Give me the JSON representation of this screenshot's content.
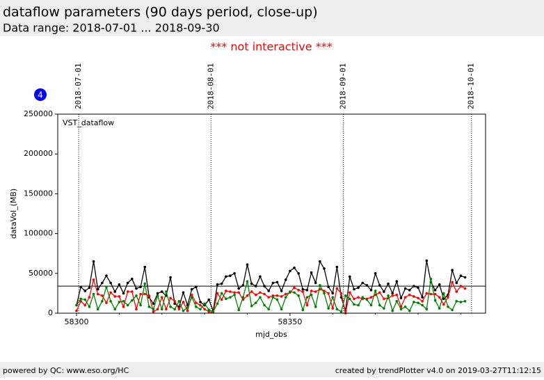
{
  "header": {
    "title": "dataflow parameters (90 days period, close-up)",
    "subtitle": "Data range: 2018-07-01 ... 2018-09-30"
  },
  "notice": "*** not interactive ***",
  "badge": "4",
  "footer": {
    "left": "powered by QC: www.eso.org/HC",
    "right": "created by trendPlotter v4.0 on 2019-03-27T11:12:15"
  },
  "chart_data": {
    "type": "line",
    "annotation": "VST_dataflow",
    "x_label": "mjd_obs",
    "y_label": "dataVol_(MB)",
    "xlim": [
      58295.6,
      58395.8
    ],
    "ylim": [
      0,
      250000
    ],
    "xticks": [
      58300,
      58350
    ],
    "xticks_minor": [
      58310,
      58320,
      58330,
      58340,
      58360,
      58370,
      58380,
      58390
    ],
    "yticks": [
      0,
      50000,
      100000,
      150000,
      200000,
      250000
    ],
    "date_ticks": [
      {
        "value": 58300.5,
        "label": "2018-07-01"
      },
      {
        "value": 58331.5,
        "label": "2018-08-01"
      },
      {
        "value": 58362.5,
        "label": "2018-09-01"
      },
      {
        "value": 58392.5,
        "label": "2018-10-01"
      }
    ],
    "hline": 34000,
    "x": [
      58300,
      58301,
      58302,
      58303,
      58304,
      58305,
      58306,
      58307,
      58308,
      58309,
      58310,
      58311,
      58312,
      58313,
      58314,
      58315,
      58316,
      58317,
      58318,
      58319,
      58320,
      58321,
      58322,
      58323,
      58324,
      58325,
      58326,
      58327,
      58328,
      58329,
      58330,
      58331,
      58332,
      58333,
      58334,
      58335,
      58336,
      58337,
      58338,
      58339,
      58340,
      58341,
      58342,
      58343,
      58344,
      58345,
      58346,
      58347,
      58348,
      58349,
      58350,
      58351,
      58352,
      58353,
      58354,
      58355,
      58356,
      58357,
      58358,
      58359,
      58360,
      58361,
      58362,
      58363,
      58364,
      58365,
      58366,
      58367,
      58368,
      58369,
      58370,
      58371,
      58372,
      58373,
      58374,
      58375,
      58376,
      58377,
      58378,
      58379,
      58380,
      58381,
      58382,
      58383,
      58384,
      58385,
      58386,
      58387,
      58388,
      58389,
      58390,
      58391
    ],
    "series": [
      {
        "color": "#000000",
        "values": [
          10000,
          33000,
          28000,
          32000,
          65000,
          30000,
          38000,
          47000,
          38000,
          27000,
          36000,
          25000,
          38000,
          43000,
          31000,
          33000,
          58000,
          20000,
          12000,
          25000,
          27000,
          22000,
          45000,
          12000,
          8000,
          26000,
          10000,
          30000,
          33000,
          14000,
          10000,
          17000,
          3000,
          36000,
          37000,
          46000,
          47000,
          50000,
          31000,
          35000,
          61000,
          37000,
          34000,
          46000,
          34000,
          28000,
          38000,
          39000,
          28000,
          42000,
          53000,
          57000,
          50000,
          30000,
          29000,
          51000,
          38000,
          65000,
          56000,
          33000,
          25000,
          58000,
          20000,
          3000,
          46000,
          30000,
          32000,
          38000,
          35000,
          29000,
          50000,
          35000,
          27000,
          37000,
          25000,
          40000,
          19000,
          31000,
          29000,
          34000,
          32000,
          20000,
          66000,
          39000,
          29000,
          36000,
          18000,
          23000,
          54000,
          38000,
          47000,
          45000
        ]
      },
      {
        "color": "#ff0000",
        "values": [
          3000,
          15000,
          10000,
          20000,
          42000,
          24000,
          22000,
          13000,
          26000,
          21000,
          21000,
          8000,
          27000,
          27000,
          5000,
          24000,
          24000,
          22000,
          2000,
          5000,
          20000,
          5000,
          19000,
          15000,
          5000,
          14000,
          3000,
          23000,
          13000,
          10000,
          5000,
          2000,
          1000,
          25000,
          17000,
          28000,
          27000,
          26000,
          26000,
          17000,
          22000,
          27000,
          23000,
          26000,
          24000,
          20000,
          22000,
          22000,
          21000,
          24000,
          26000,
          32000,
          29000,
          27000,
          10000,
          28000,
          27000,
          30000,
          28000,
          25000,
          6000,
          31000,
          25000,
          0,
          26000,
          18000,
          20000,
          18000,
          18000,
          20000,
          23000,
          26000,
          18000,
          19000,
          22000,
          23000,
          8000,
          20000,
          23000,
          21000,
          19000,
          15000,
          25000,
          24000,
          24000,
          20000,
          11000,
          20000,
          39000,
          27000,
          34000,
          31000
        ]
      },
      {
        "color": "#008000",
        "values": [
          10000,
          18000,
          17000,
          8000,
          24000,
          5000,
          15000,
          33000,
          15000,
          5000,
          14000,
          15000,
          10000,
          16000,
          22000,
          10000,
          37000,
          8000,
          5000,
          22000,
          5000,
          27000,
          8000,
          5000,
          15000,
          3000,
          7000,
          20000,
          8000,
          5000,
          12000,
          4000,
          2000,
          12000,
          25000,
          18000,
          20000,
          23000,
          4000,
          20000,
          40000,
          9000,
          13000,
          20000,
          10000,
          5000,
          20000,
          17000,
          5000,
          20000,
          27000,
          26000,
          22000,
          4000,
          20000,
          23000,
          8000,
          35000,
          25000,
          6000,
          20000,
          5000,
          2000,
          22000,
          18000,
          11000,
          10000,
          20000,
          17000,
          10000,
          28000,
          10000,
          6000,
          22000,
          3000,
          15000,
          5000,
          8000,
          3000,
          14000,
          13000,
          10000,
          5000,
          43000,
          16000,
          6000,
          25000,
          8000,
          4000,
          15000,
          14000,
          15000
        ]
      }
    ]
  }
}
